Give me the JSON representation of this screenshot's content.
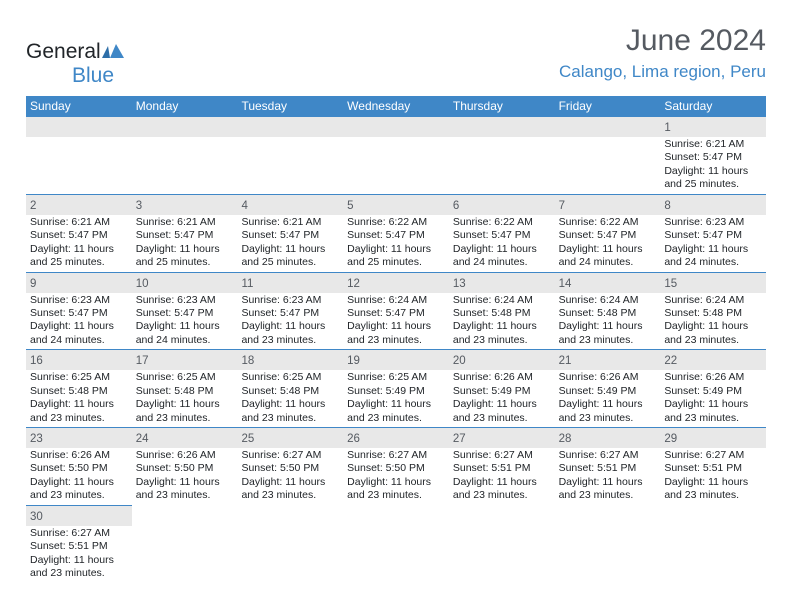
{
  "header": {
    "logo_part1": "General",
    "logo_part2": "Blue",
    "month_title": "June 2024",
    "location": "Calango, Lima region, Peru"
  },
  "colors": {
    "brand_blue": "#3f87c7",
    "header_gray": "#555a61",
    "row_band": "#e8e8e8",
    "text": "#212529",
    "bg": "#ffffff"
  },
  "day_names": [
    "Sunday",
    "Monday",
    "Tuesday",
    "Wednesday",
    "Thursday",
    "Friday",
    "Saturday"
  ],
  "weeks": [
    [
      null,
      null,
      null,
      null,
      null,
      null,
      {
        "n": "1",
        "sr": "6:21 AM",
        "ss": "5:47 PM",
        "dl": "11 hours and 25 minutes."
      }
    ],
    [
      {
        "n": "2",
        "sr": "6:21 AM",
        "ss": "5:47 PM",
        "dl": "11 hours and 25 minutes."
      },
      {
        "n": "3",
        "sr": "6:21 AM",
        "ss": "5:47 PM",
        "dl": "11 hours and 25 minutes."
      },
      {
        "n": "4",
        "sr": "6:21 AM",
        "ss": "5:47 PM",
        "dl": "11 hours and 25 minutes."
      },
      {
        "n": "5",
        "sr": "6:22 AM",
        "ss": "5:47 PM",
        "dl": "11 hours and 25 minutes."
      },
      {
        "n": "6",
        "sr": "6:22 AM",
        "ss": "5:47 PM",
        "dl": "11 hours and 24 minutes."
      },
      {
        "n": "7",
        "sr": "6:22 AM",
        "ss": "5:47 PM",
        "dl": "11 hours and 24 minutes."
      },
      {
        "n": "8",
        "sr": "6:23 AM",
        "ss": "5:47 PM",
        "dl": "11 hours and 24 minutes."
      }
    ],
    [
      {
        "n": "9",
        "sr": "6:23 AM",
        "ss": "5:47 PM",
        "dl": "11 hours and 24 minutes."
      },
      {
        "n": "10",
        "sr": "6:23 AM",
        "ss": "5:47 PM",
        "dl": "11 hours and 24 minutes."
      },
      {
        "n": "11",
        "sr": "6:23 AM",
        "ss": "5:47 PM",
        "dl": "11 hours and 23 minutes."
      },
      {
        "n": "12",
        "sr": "6:24 AM",
        "ss": "5:47 PM",
        "dl": "11 hours and 23 minutes."
      },
      {
        "n": "13",
        "sr": "6:24 AM",
        "ss": "5:48 PM",
        "dl": "11 hours and 23 minutes."
      },
      {
        "n": "14",
        "sr": "6:24 AM",
        "ss": "5:48 PM",
        "dl": "11 hours and 23 minutes."
      },
      {
        "n": "15",
        "sr": "6:24 AM",
        "ss": "5:48 PM",
        "dl": "11 hours and 23 minutes."
      }
    ],
    [
      {
        "n": "16",
        "sr": "6:25 AM",
        "ss": "5:48 PM",
        "dl": "11 hours and 23 minutes."
      },
      {
        "n": "17",
        "sr": "6:25 AM",
        "ss": "5:48 PM",
        "dl": "11 hours and 23 minutes."
      },
      {
        "n": "18",
        "sr": "6:25 AM",
        "ss": "5:48 PM",
        "dl": "11 hours and 23 minutes."
      },
      {
        "n": "19",
        "sr": "6:25 AM",
        "ss": "5:49 PM",
        "dl": "11 hours and 23 minutes."
      },
      {
        "n": "20",
        "sr": "6:26 AM",
        "ss": "5:49 PM",
        "dl": "11 hours and 23 minutes."
      },
      {
        "n": "21",
        "sr": "6:26 AM",
        "ss": "5:49 PM",
        "dl": "11 hours and 23 minutes."
      },
      {
        "n": "22",
        "sr": "6:26 AM",
        "ss": "5:49 PM",
        "dl": "11 hours and 23 minutes."
      }
    ],
    [
      {
        "n": "23",
        "sr": "6:26 AM",
        "ss": "5:50 PM",
        "dl": "11 hours and 23 minutes."
      },
      {
        "n": "24",
        "sr": "6:26 AM",
        "ss": "5:50 PM",
        "dl": "11 hours and 23 minutes."
      },
      {
        "n": "25",
        "sr": "6:27 AM",
        "ss": "5:50 PM",
        "dl": "11 hours and 23 minutes."
      },
      {
        "n": "26",
        "sr": "6:27 AM",
        "ss": "5:50 PM",
        "dl": "11 hours and 23 minutes."
      },
      {
        "n": "27",
        "sr": "6:27 AM",
        "ss": "5:51 PM",
        "dl": "11 hours and 23 minutes."
      },
      {
        "n": "28",
        "sr": "6:27 AM",
        "ss": "5:51 PM",
        "dl": "11 hours and 23 minutes."
      },
      {
        "n": "29",
        "sr": "6:27 AM",
        "ss": "5:51 PM",
        "dl": "11 hours and 23 minutes."
      }
    ],
    [
      {
        "n": "30",
        "sr": "6:27 AM",
        "ss": "5:51 PM",
        "dl": "11 hours and 23 minutes."
      },
      null,
      null,
      null,
      null,
      null,
      null
    ]
  ],
  "labels": {
    "sunrise": "Sunrise: ",
    "sunset": "Sunset: ",
    "daylight": "Daylight: "
  }
}
